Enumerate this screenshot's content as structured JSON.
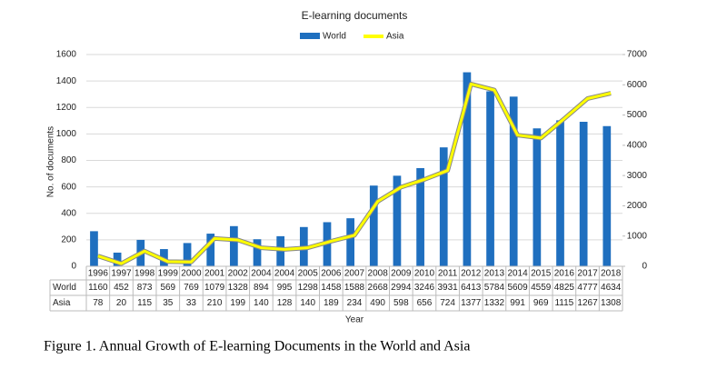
{
  "chart_data": {
    "type": "bar",
    "title": "E-learning documents",
    "x_label": "Year",
    "y_label": "No. of documents",
    "categories": [
      "1996",
      "1997",
      "1998",
      "1999",
      "2000",
      "2001",
      "2002",
      "2004",
      "2004",
      "2005",
      "2006",
      "2007",
      "2008",
      "2009",
      "2010",
      "2011",
      "2012",
      "2013",
      "2014",
      "2015",
      "2016",
      "2017",
      "2018"
    ],
    "series": [
      {
        "name": "World",
        "color": "#1f6fbf",
        "type": "bar",
        "axis": "y2",
        "values": [
          1160,
          452,
          873,
          569,
          769,
          1079,
          1328,
          894,
          995,
          1298,
          1458,
          1588,
          2668,
          2994,
          3246,
          3931,
          6413,
          5784,
          5609,
          4559,
          4825,
          4777,
          4634
        ]
      },
      {
        "name": "Asia",
        "color": "#ffff00",
        "type": "line",
        "values": [
          78,
          20,
          115,
          35,
          33,
          210,
          199,
          140,
          128,
          140,
          189,
          234,
          490,
          598,
          656,
          724,
          1377,
          1332,
          991,
          969,
          1115,
          1267,
          1308
        ]
      }
    ],
    "ylim": [
      0,
      1600
    ],
    "yticks": [
      0,
      200,
      400,
      600,
      800,
      1000,
      1200,
      1400,
      1600
    ],
    "y2lim": [
      0,
      7000
    ],
    "y2ticks": [
      0,
      1000,
      2000,
      3000,
      4000,
      5000,
      6000,
      7000
    ],
    "grid": true,
    "legend": "top",
    "caption": "Figure 1. Annual Growth of E-learning Documents in the World and Asia"
  }
}
